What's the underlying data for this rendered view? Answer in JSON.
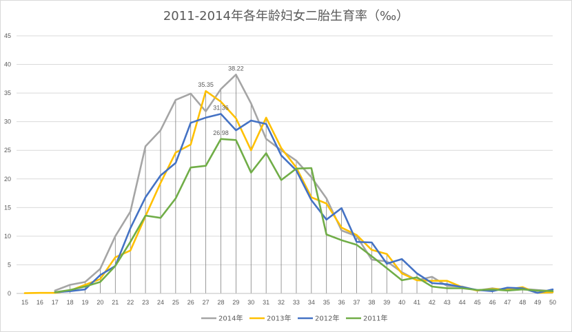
{
  "chart_data": {
    "type": "line",
    "title": "2011-2014年各年龄妇女二胎生育率（‰）",
    "xlabel": "",
    "ylabel": "",
    "x": [
      15,
      16,
      17,
      18,
      19,
      20,
      21,
      22,
      23,
      24,
      25,
      26,
      27,
      28,
      29,
      30,
      31,
      32,
      33,
      34,
      35,
      36,
      37,
      38,
      39,
      40,
      41,
      42,
      43,
      44,
      45,
      46,
      47,
      48,
      49,
      50
    ],
    "ylim": [
      0,
      45
    ],
    "yticks": [
      0,
      5,
      10,
      15,
      20,
      25,
      30,
      35,
      40,
      45
    ],
    "grid": "horizontal",
    "drop_lines": true,
    "legend_position": "bottom",
    "series": [
      {
        "name": "2014年",
        "color": "#a5a5a5",
        "values": [
          null,
          null,
          0.5,
          1.5,
          2.0,
          4.3,
          10.0,
          14.3,
          25.7,
          28.5,
          33.8,
          34.9,
          31.8,
          35.7,
          38.22,
          33.2,
          27.0,
          25.0,
          23.2,
          20.3,
          16.6,
          11.0,
          10.0,
          5.9,
          5.6,
          3.7,
          2.3,
          2.9,
          1.3,
          1.2,
          0.5,
          0.9,
          0.5,
          0.8,
          0.6,
          0.4
        ]
      },
      {
        "name": "2013年",
        "color": "#ffc000",
        "values": [
          0.05,
          0.1,
          0.1,
          0.5,
          1.5,
          2.5,
          6.3,
          7.5,
          13.5,
          19.3,
          24.6,
          26.0,
          35.35,
          33.5,
          30.6,
          25.0,
          30.7,
          25.4,
          22.0,
          16.8,
          15.7,
          11.5,
          10.2,
          7.6,
          6.9,
          3.5,
          2.3,
          2.2,
          2.2,
          1.1,
          0.5,
          0.8,
          0.7,
          1.1,
          0.1,
          0.2
        ]
      },
      {
        "name": "2012年",
        "color": "#4472c4",
        "values": [
          null,
          null,
          0.2,
          0.4,
          0.7,
          3.2,
          4.8,
          11.4,
          16.8,
          20.6,
          22.8,
          29.8,
          30.7,
          31.36,
          28.5,
          30.2,
          29.6,
          24.1,
          21.5,
          16.3,
          12.9,
          14.9,
          9.0,
          8.9,
          5.2,
          6.0,
          3.5,
          1.8,
          1.6,
          1.1,
          0.6,
          0.4,
          1.0,
          0.9,
          0.1,
          0.7
        ]
      },
      {
        "name": "2011年",
        "color": "#70ad47",
        "values": [
          null,
          null,
          0.2,
          0.6,
          1.2,
          2.0,
          4.8,
          9.0,
          13.6,
          13.2,
          16.6,
          22.0,
          22.3,
          26.98,
          26.8,
          21.1,
          24.5,
          19.8,
          21.8,
          21.9,
          10.3,
          9.3,
          8.5,
          6.5,
          4.4,
          2.3,
          2.8,
          1.2,
          0.9,
          0.9,
          0.6,
          0.7,
          0.5,
          0.7,
          0.5,
          0.4
        ]
      }
    ],
    "data_labels": [
      {
        "series": "2014年",
        "x": 29,
        "text": "38.22"
      },
      {
        "series": "2013年",
        "x": 27,
        "text": "35.35"
      },
      {
        "series": "2012年",
        "x": 28,
        "text": "31.36"
      },
      {
        "series": "2011年",
        "x": 28,
        "text": "26.98"
      }
    ]
  }
}
